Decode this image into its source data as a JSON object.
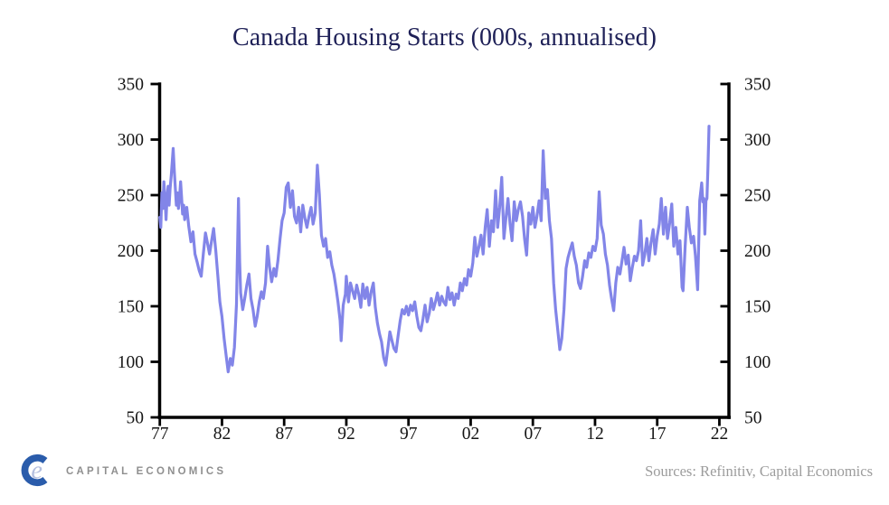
{
  "title": "Canada Housing Starts (000s, annualised)",
  "footer": {
    "logo_text": "CAPITAL ECONOMICS",
    "logo_mark_e": "e",
    "sources_text": "Sources: Refinitiv, Capital Economics"
  },
  "colors": {
    "line": "#8285e8",
    "title": "#1e2057",
    "axis": "#000000",
    "tick_label": "#161616",
    "logo_blue": "#2a5cab",
    "logo_light_e": "#b4bfdf",
    "logo_gray": "#8f8f8f",
    "sources_gray": "#9c9c9c"
  },
  "chart_data": {
    "type": "line",
    "title": "Canada Housing Starts (000s, annualised)",
    "xlabel": "",
    "ylabel": "",
    "units": "thousands, annualised rate",
    "ylim": [
      50,
      350
    ],
    "y_ticks": [
      50,
      100,
      150,
      200,
      250,
      300,
      350
    ],
    "y_axis_sides": [
      "left",
      "right"
    ],
    "x_tick_years": [
      1977,
      1982,
      1987,
      1992,
      1997,
      2002,
      2007,
      2012,
      2017,
      2022
    ],
    "x_tick_labels": [
      "77",
      "82",
      "87",
      "92",
      "97",
      "02",
      "07",
      "12",
      "17",
      "22"
    ],
    "xlim": [
      1977.0,
      2022.8
    ],
    "grid": false,
    "legend": "none",
    "series": [
      {
        "name": "Canada housing starts (000s, annualised)",
        "points": [
          [
            1977.0,
            230
          ],
          [
            1977.08,
            221
          ],
          [
            1977.17,
            252
          ],
          [
            1977.25,
            238
          ],
          [
            1977.33,
            262
          ],
          [
            1977.42,
            246
          ],
          [
            1977.5,
            228
          ],
          [
            1977.58,
            248
          ],
          [
            1977.67,
            258
          ],
          [
            1977.75,
            241
          ],
          [
            1977.83,
            256
          ],
          [
            1977.92,
            268
          ],
          [
            1978.08,
            292
          ],
          [
            1978.17,
            271
          ],
          [
            1978.25,
            256
          ],
          [
            1978.33,
            241
          ],
          [
            1978.42,
            252
          ],
          [
            1978.5,
            238
          ],
          [
            1978.58,
            247
          ],
          [
            1978.67,
            262
          ],
          [
            1978.75,
            248
          ],
          [
            1978.83,
            233
          ],
          [
            1978.92,
            241
          ],
          [
            1979.0,
            228
          ],
          [
            1979.17,
            239
          ],
          [
            1979.33,
            222
          ],
          [
            1979.5,
            208
          ],
          [
            1979.67,
            217
          ],
          [
            1979.83,
            197
          ],
          [
            1980.0,
            190
          ],
          [
            1980.17,
            182
          ],
          [
            1980.33,
            177
          ],
          [
            1980.5,
            197
          ],
          [
            1980.67,
            216
          ],
          [
            1980.83,
            207
          ],
          [
            1981.0,
            197
          ],
          [
            1981.17,
            209
          ],
          [
            1981.33,
            220
          ],
          [
            1981.5,
            200
          ],
          [
            1981.67,
            177
          ],
          [
            1981.83,
            154
          ],
          [
            1982.0,
            141
          ],
          [
            1982.17,
            121
          ],
          [
            1982.33,
            106
          ],
          [
            1982.5,
            91
          ],
          [
            1982.67,
            103
          ],
          [
            1982.83,
            97
          ],
          [
            1983.0,
            113
          ],
          [
            1983.17,
            152
          ],
          [
            1983.33,
            247
          ],
          [
            1983.42,
            190
          ],
          [
            1983.5,
            162
          ],
          [
            1983.67,
            147
          ],
          [
            1983.83,
            157
          ],
          [
            1984.0,
            169
          ],
          [
            1984.17,
            179
          ],
          [
            1984.33,
            157
          ],
          [
            1984.5,
            147
          ],
          [
            1984.67,
            132
          ],
          [
            1984.83,
            141
          ],
          [
            1985.0,
            154
          ],
          [
            1985.17,
            163
          ],
          [
            1985.33,
            157
          ],
          [
            1985.5,
            171
          ],
          [
            1985.67,
            204
          ],
          [
            1985.83,
            185
          ],
          [
            1986.0,
            172
          ],
          [
            1986.17,
            184
          ],
          [
            1986.33,
            177
          ],
          [
            1986.5,
            191
          ],
          [
            1986.67,
            211
          ],
          [
            1986.83,
            227
          ],
          [
            1987.0,
            234
          ],
          [
            1987.17,
            257
          ],
          [
            1987.33,
            261
          ],
          [
            1987.5,
            239
          ],
          [
            1987.67,
            254
          ],
          [
            1987.83,
            231
          ],
          [
            1988.0,
            225
          ],
          [
            1988.17,
            239
          ],
          [
            1988.33,
            217
          ],
          [
            1988.5,
            241
          ],
          [
            1988.67,
            229
          ],
          [
            1988.83,
            221
          ],
          [
            1989.0,
            231
          ],
          [
            1989.17,
            239
          ],
          [
            1989.33,
            224
          ],
          [
            1989.5,
            234
          ],
          [
            1989.67,
            277
          ],
          [
            1989.83,
            251
          ],
          [
            1990.0,
            214
          ],
          [
            1990.17,
            204
          ],
          [
            1990.33,
            211
          ],
          [
            1990.5,
            194
          ],
          [
            1990.67,
            199
          ],
          [
            1990.83,
            187
          ],
          [
            1991.0,
            179
          ],
          [
            1991.17,
            167
          ],
          [
            1991.33,
            154
          ],
          [
            1991.5,
            137
          ],
          [
            1991.58,
            119
          ],
          [
            1991.75,
            151
          ],
          [
            1991.92,
            161
          ],
          [
            1992.0,
            177
          ],
          [
            1992.17,
            154
          ],
          [
            1992.33,
            171
          ],
          [
            1992.5,
            164
          ],
          [
            1992.67,
            157
          ],
          [
            1992.83,
            169
          ],
          [
            1993.0,
            161
          ],
          [
            1993.17,
            149
          ],
          [
            1993.33,
            170
          ],
          [
            1993.5,
            157
          ],
          [
            1993.67,
            167
          ],
          [
            1993.83,
            151
          ],
          [
            1994.0,
            163
          ],
          [
            1994.17,
            171
          ],
          [
            1994.33,
            149
          ],
          [
            1994.5,
            135
          ],
          [
            1994.67,
            125
          ],
          [
            1994.83,
            118
          ],
          [
            1995.0,
            104
          ],
          [
            1995.17,
            97
          ],
          [
            1995.33,
            111
          ],
          [
            1995.5,
            127
          ],
          [
            1995.67,
            119
          ],
          [
            1995.83,
            112
          ],
          [
            1996.0,
            109
          ],
          [
            1996.17,
            124
          ],
          [
            1996.33,
            137
          ],
          [
            1996.5,
            147
          ],
          [
            1996.67,
            143
          ],
          [
            1996.83,
            150
          ],
          [
            1997.0,
            142
          ],
          [
            1997.17,
            151
          ],
          [
            1997.33,
            146
          ],
          [
            1997.5,
            154
          ],
          [
            1997.67,
            141
          ],
          [
            1997.83,
            131
          ],
          [
            1998.0,
            128
          ],
          [
            1998.17,
            139
          ],
          [
            1998.33,
            151
          ],
          [
            1998.5,
            136
          ],
          [
            1998.67,
            144
          ],
          [
            1998.83,
            157
          ],
          [
            1999.0,
            147
          ],
          [
            1999.17,
            154
          ],
          [
            1999.33,
            162
          ],
          [
            1999.5,
            151
          ],
          [
            1999.67,
            159
          ],
          [
            1999.83,
            154
          ],
          [
            2000.0,
            151
          ],
          [
            2000.17,
            167
          ],
          [
            2000.33,
            156
          ],
          [
            2000.5,
            162
          ],
          [
            2000.67,
            151
          ],
          [
            2000.83,
            161
          ],
          [
            2001.0,
            157
          ],
          [
            2001.17,
            171
          ],
          [
            2001.33,
            164
          ],
          [
            2001.5,
            175
          ],
          [
            2001.67,
            169
          ],
          [
            2001.83,
            183
          ],
          [
            2002.0,
            177
          ],
          [
            2002.17,
            189
          ],
          [
            2002.33,
            212
          ],
          [
            2002.5,
            195
          ],
          [
            2002.67,
            204
          ],
          [
            2002.83,
            214
          ],
          [
            2003.0,
            197
          ],
          [
            2003.17,
            221
          ],
          [
            2003.33,
            237
          ],
          [
            2003.5,
            204
          ],
          [
            2003.67,
            227
          ],
          [
            2003.83,
            217
          ],
          [
            2004.0,
            254
          ],
          [
            2004.17,
            221
          ],
          [
            2004.33,
            239
          ],
          [
            2004.5,
            266
          ],
          [
            2004.67,
            211
          ],
          [
            2004.83,
            229
          ],
          [
            2005.0,
            247
          ],
          [
            2005.17,
            224
          ],
          [
            2005.33,
            209
          ],
          [
            2005.5,
            244
          ],
          [
            2005.67,
            227
          ],
          [
            2005.83,
            237
          ],
          [
            2006.0,
            244
          ],
          [
            2006.17,
            231
          ],
          [
            2006.33,
            211
          ],
          [
            2006.5,
            196
          ],
          [
            2006.67,
            234
          ],
          [
            2006.83,
            224
          ],
          [
            2007.0,
            239
          ],
          [
            2007.17,
            221
          ],
          [
            2007.33,
            231
          ],
          [
            2007.5,
            245
          ],
          [
            2007.67,
            227
          ],
          [
            2007.83,
            290
          ],
          [
            2008.0,
            247
          ],
          [
            2008.17,
            255
          ],
          [
            2008.33,
            227
          ],
          [
            2008.5,
            211
          ],
          [
            2008.67,
            171
          ],
          [
            2008.83,
            147
          ],
          [
            2009.0,
            129
          ],
          [
            2009.17,
            111
          ],
          [
            2009.33,
            121
          ],
          [
            2009.5,
            147
          ],
          [
            2009.67,
            184
          ],
          [
            2009.83,
            194
          ],
          [
            2010.0,
            201
          ],
          [
            2010.17,
            207
          ],
          [
            2010.33,
            195
          ],
          [
            2010.5,
            187
          ],
          [
            2010.67,
            171
          ],
          [
            2010.83,
            166
          ],
          [
            2011.0,
            177
          ],
          [
            2011.17,
            191
          ],
          [
            2011.33,
            185
          ],
          [
            2011.5,
            198
          ],
          [
            2011.67,
            194
          ],
          [
            2011.83,
            204
          ],
          [
            2012.0,
            200
          ],
          [
            2012.17,
            211
          ],
          [
            2012.33,
            253
          ],
          [
            2012.5,
            223
          ],
          [
            2012.67,
            215
          ],
          [
            2012.83,
            197
          ],
          [
            2013.0,
            187
          ],
          [
            2013.17,
            169
          ],
          [
            2013.33,
            157
          ],
          [
            2013.5,
            146
          ],
          [
            2013.67,
            171
          ],
          [
            2013.83,
            185
          ],
          [
            2014.0,
            179
          ],
          [
            2014.17,
            191
          ],
          [
            2014.33,
            203
          ],
          [
            2014.5,
            188
          ],
          [
            2014.67,
            196
          ],
          [
            2014.83,
            173
          ],
          [
            2015.0,
            185
          ],
          [
            2015.17,
            195
          ],
          [
            2015.33,
            191
          ],
          [
            2015.5,
            200
          ],
          [
            2015.67,
            227
          ],
          [
            2015.83,
            187
          ],
          [
            2016.0,
            197
          ],
          [
            2016.17,
            211
          ],
          [
            2016.33,
            191
          ],
          [
            2016.5,
            207
          ],
          [
            2016.67,
            219
          ],
          [
            2016.83,
            197
          ],
          [
            2017.0,
            213
          ],
          [
            2017.17,
            224
          ],
          [
            2017.33,
            247
          ],
          [
            2017.5,
            215
          ],
          [
            2017.67,
            239
          ],
          [
            2017.83,
            211
          ],
          [
            2018.0,
            225
          ],
          [
            2018.17,
            242
          ],
          [
            2018.33,
            204
          ],
          [
            2018.5,
            221
          ],
          [
            2018.67,
            197
          ],
          [
            2018.83,
            209
          ],
          [
            2019.0,
            167
          ],
          [
            2019.08,
            164
          ],
          [
            2019.25,
            204
          ],
          [
            2019.42,
            239
          ],
          [
            2019.58,
            221
          ],
          [
            2019.75,
            207
          ],
          [
            2019.92,
            213
          ],
          [
            2020.08,
            195
          ],
          [
            2020.25,
            165
          ],
          [
            2020.42,
            245
          ],
          [
            2020.58,
            261
          ],
          [
            2020.67,
            244
          ],
          [
            2020.75,
            247
          ],
          [
            2020.83,
            215
          ],
          [
            2020.92,
            245
          ],
          [
            2021.0,
            247
          ],
          [
            2021.08,
            275
          ],
          [
            2021.17,
            312
          ]
        ]
      }
    ]
  }
}
